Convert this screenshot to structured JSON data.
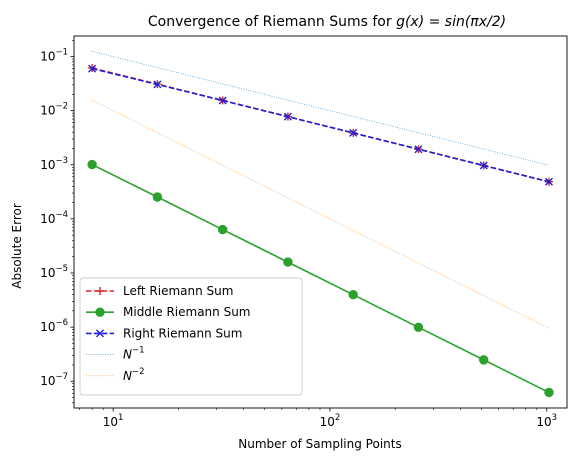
{
  "chart_data": {
    "type": "line",
    "title": "Convergence of Riemann Sums for g(x) = sin(πx/2)",
    "title_parts": {
      "prefix": "Convergence of Riemann Sums for ",
      "math": "g(x) = sin(πx/2)"
    },
    "xlabel": "Number of Sampling Points",
    "ylabel": "Absolute Error",
    "xscale": "log",
    "yscale": "log",
    "xlim": [
      6.6,
      1240
    ],
    "ylim": [
      3.2e-08,
      0.24
    ],
    "xticks": [
      {
        "value": 10,
        "base": "10",
        "exp": "1"
      },
      {
        "value": 100,
        "base": "10",
        "exp": "2"
      },
      {
        "value": 1000,
        "base": "10",
        "exp": "3"
      }
    ],
    "yticks": [
      {
        "value": 1e-07,
        "base": "10",
        "exp": "−7"
      },
      {
        "value": 1e-06,
        "base": "10",
        "exp": "−6"
      },
      {
        "value": 1e-05,
        "base": "10",
        "exp": "−5"
      },
      {
        "value": 0.0001,
        "base": "10",
        "exp": "−4"
      },
      {
        "value": 0.001,
        "base": "10",
        "exp": "−3"
      },
      {
        "value": 0.01,
        "base": "10",
        "exp": "−2"
      },
      {
        "value": 0.1,
        "base": "10",
        "exp": "−1"
      }
    ],
    "x": [
      8,
      16,
      32,
      64,
      128,
      256,
      512,
      1024
    ],
    "series": [
      {
        "name": "Left Riemann Sum",
        "color": "#d62728",
        "linestyle": "dashed",
        "marker": "plus",
        "values": [
          0.0614,
          0.0309,
          0.0155,
          0.00776,
          0.00388,
          0.00194,
          0.000971,
          0.000486
        ]
      },
      {
        "name": "Middle Riemann Sum",
        "color": "#2ca02c",
        "linestyle": "solid",
        "marker": "circle",
        "values": [
          0.00101,
          0.000254,
          6.35e-05,
          1.59e-05,
          3.97e-06,
          9.93e-07,
          2.48e-07,
          6.2e-08
        ]
      },
      {
        "name": "Right Riemann Sum",
        "color": "#1f1fd6",
        "linestyle": "dashed",
        "marker": "x",
        "values": [
          0.06,
          0.0306,
          0.0154,
          0.00776,
          0.00388,
          0.00194,
          0.00097,
          0.000485
        ]
      },
      {
        "name": "N",
        "name_exp": "−1",
        "color": "#1f77b4",
        "linestyle": "dotted",
        "marker": "none",
        "values": [
          0.125,
          0.0625,
          0.03125,
          0.015625,
          0.0078125,
          0.00390625,
          0.001953,
          0.000977
        ]
      },
      {
        "name": "N",
        "name_exp": "−2",
        "color": "#ff7f0e",
        "linestyle": "dotted",
        "marker": "none",
        "values": [
          0.015625,
          0.00390625,
          0.000977,
          0.000244,
          6.1e-05,
          1.53e-05,
          3.81e-06,
          9.54e-07
        ]
      }
    ],
    "legend_position": "lower-left",
    "grid": false
  }
}
